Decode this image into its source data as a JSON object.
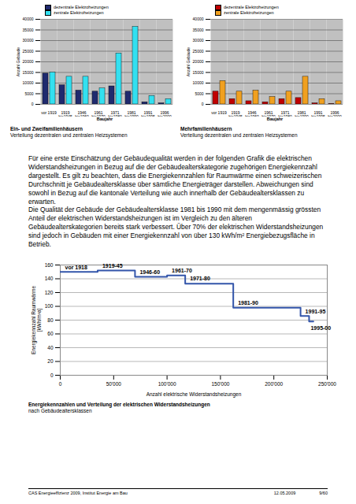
{
  "chart_data": [
    {
      "type": "bar",
      "caption": [
        "Ein- und Zweifamilienhäusern",
        "Verteilung dezentralen und zentralen Heizsystemen"
      ],
      "x_label": "Baujahr",
      "y_label": "Anzahl Gebäude",
      "categories": [
        "vor 1919",
        "1919\nbis1945",
        "1946\nbis1960",
        "1961\nbis1970",
        "1971\nbis1980",
        "1981\nbis1990",
        "1991\nbis1995",
        "1996\nbis2000"
      ],
      "series": [
        {
          "name": "dezentrale Elektroheizungen",
          "color": "#1f2a6e",
          "values": [
            14500,
            9000,
            6500,
            6000,
            8500,
            6000,
            1000,
            500
          ]
        },
        {
          "name": "zentrale Elektroheizungen",
          "color": "#33e0f0",
          "values": [
            15000,
            13000,
            13000,
            7500,
            24000,
            36500,
            4000,
            2500
          ]
        }
      ],
      "ylim": [
        0,
        40000
      ],
      "yticks": [
        0,
        5000,
        10000,
        15000,
        20000,
        25000,
        30000,
        35000,
        40000
      ],
      "grid": true,
      "legend": "top"
    },
    {
      "type": "bar",
      "caption": [
        "Mehrfamilienhäusern",
        "Verteilung dezentralen und zentralen Heizsystemen"
      ],
      "x_label": "Baujahr",
      "y_label": "Anzahl Gebäude",
      "categories": [
        "vor 1919",
        "1919\nbis1945",
        "1946\nbis1960",
        "1961\nbis1970",
        "1971\nbis1980",
        "1981\nbis1990",
        "1991\nbis1995",
        "1996\nbis2000"
      ],
      "series": [
        {
          "name": "dezentrale Elektroheizungen",
          "color": "#c00000",
          "values": [
            6000,
            2500,
            1500,
            1000,
            2500,
            3000,
            500,
            200
          ]
        },
        {
          "name": "zentrale Elektroheizungen",
          "color": "#f0a020",
          "values": [
            11000,
            6000,
            6500,
            3500,
            6000,
            13000,
            2500,
            1500
          ]
        }
      ],
      "ylim": [
        0,
        40000
      ],
      "yticks": [
        0,
        5000,
        10000,
        15000,
        20000,
        25000,
        30000,
        35000,
        40000
      ],
      "grid": true,
      "legend": "top"
    },
    {
      "type": "step",
      "caption": [
        "Energiekennzahlen und Verteilung der elektrischen Widerstandsheizungen",
        "nach Gebäudealtersklassen"
      ],
      "x_label": "Anzahl elektrische Widerstandsheizungen",
      "y_label": "Energiekennzahl Raumwärme\n[kWh/m²a]",
      "categories": [
        "vor 1918",
        "1919-45",
        "1946-60",
        "1961-70",
        "1971-80",
        "1981-90",
        "1991-95",
        "1995-00"
      ],
      "counts": [
        35000,
        35000,
        30000,
        17000,
        45000,
        63000,
        8000,
        4000
      ],
      "values": [
        150,
        152,
        143,
        145,
        133,
        98,
        86,
        78
      ],
      "color": "#3355aa",
      "xlim": [
        0,
        250000
      ],
      "xticks": [
        0,
        {
          "value": 50000,
          "label": "50'000"
        },
        {
          "value": 100000,
          "label": "100'000"
        },
        {
          "value": 150000,
          "label": "150'000"
        },
        {
          "value": 200000,
          "label": "200'000"
        },
        {
          "value": 250000,
          "label": "250'000"
        }
      ],
      "ylim": [
        0,
        160
      ],
      "yticks": [
        0,
        20,
        40,
        60,
        80,
        100,
        120,
        140,
        160
      ],
      "grid": true
    }
  ],
  "document": {
    "paragraphs": [
      "Für eine erste Einschätzung der Gebäudequalität werden in der folgenden Grafik die elektrischen Widerstandsheizungen in Bezug auf die der Gebäudealterskategorie zugehörigen Energiekennzahl dargestellt. Es gilt zu beachten, dass die Energiekennzahlen für Raumwärme einen schweizerischen Durchschnitt je Gebäudealtersklasse über sämtliche Energieträger darstellen. Abweichungen sind sowohl in Bezug auf die kantonale Verteilung wie auch innerhalb der Gebäudealtersklassen zu erwarten.",
      "Die Qualität der Gebäude der Gebäudealtersklasse 1981 bis 1990 mit dem mengenmässig grössten Anteil der elektrischen Widerstandsheizungen ist im Vergleich zu den älteren Gebäudealterskategorien bereits stark verbessert. Über 70% der elektrischen Widerstandsheizungen sind jedoch in Gebäuden mit einer Energiekennzahl von über 130 kWh/m² Energiebezugsfläche in Betrieb."
    ],
    "footer": {
      "left": "CAS Energieeffizienz 2009, Institut Energie am Bau",
      "date": "12.05.2009",
      "page": "9/60"
    }
  }
}
